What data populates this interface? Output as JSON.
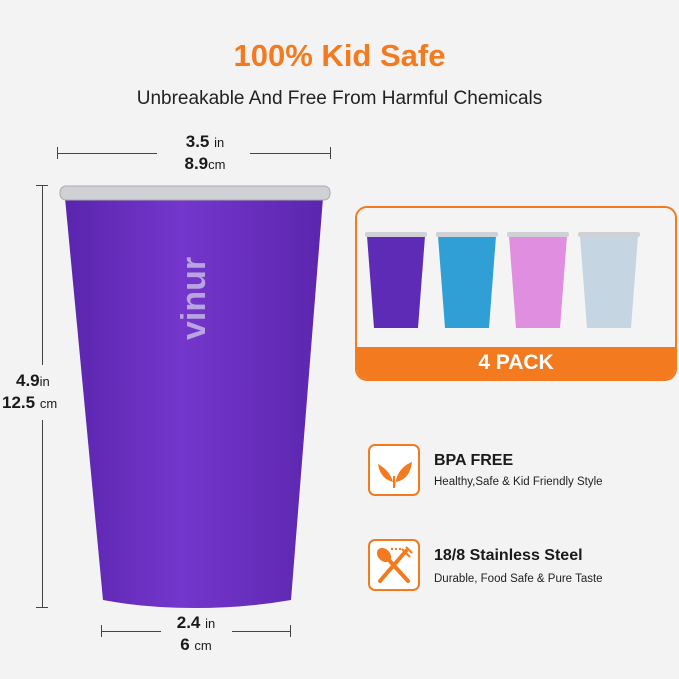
{
  "header": {
    "title": "100% Kid Safe",
    "subtitle": "Unbreakable And Free From Harmful Chemicals"
  },
  "dimensions": {
    "top": {
      "value_in": "3.5",
      "unit_in": "in",
      "value_cm": "8.9",
      "unit_cm": "cm"
    },
    "height": {
      "value_in": "4.9",
      "unit_in": "in",
      "value_cm": "12.5",
      "unit_cm": "cm"
    },
    "bottom": {
      "value_in": "2.4",
      "unit_in": "in",
      "value_cm": "6",
      "unit_cm": "cm"
    }
  },
  "product": {
    "brand": "vinur",
    "main_color": "#6a2fc0"
  },
  "pack": {
    "label": "4 PACK",
    "colors": [
      "#5d2bb5",
      "#2f9fd6",
      "#e08fe0",
      "#c5d5e2"
    ]
  },
  "features": [
    {
      "icon": "leaf-icon",
      "title": "BPA FREE",
      "desc": "Healthy,Safe & Kid Friendly Style"
    },
    {
      "icon": "utensils-icon",
      "title": "18/8 Stainless Steel",
      "desc": "Durable, Food Safe & Pure Taste"
    }
  ],
  "accent": "#f37a1f"
}
